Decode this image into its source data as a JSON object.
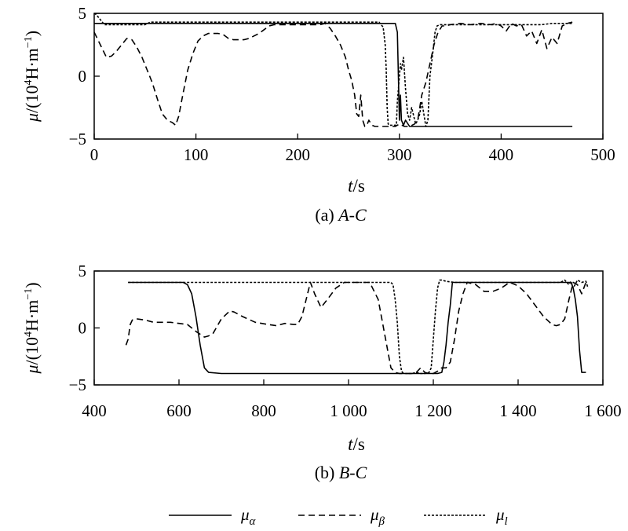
{
  "chart_data": [
    {
      "type": "line",
      "caption_label": "(a) ",
      "caption_italic": "A-C",
      "xlabel_italic": "t",
      "xlabel_rest": "/s",
      "ylabel_italic": "μ",
      "ylabel_rest_a": "/(10",
      "ylabel_sup": "4",
      "ylabel_rest_b": "H·m",
      "ylabel_sup2": "−1",
      "ylabel_rest_c": ")",
      "xlim": [
        0,
        500
      ],
      "ylim": [
        -5,
        5
      ],
      "xticks": [
        0,
        100,
        200,
        300,
        400,
        500
      ],
      "xtick_labels": [
        "0",
        "100",
        "200",
        "300",
        "400",
        "500"
      ],
      "yticks": [
        5,
        0,
        -5
      ],
      "ytick_labels": [
        "5",
        "0",
        "−5"
      ],
      "series": [
        {
          "key": "mu_alpha",
          "style": "solid",
          "x": [
            0,
            296,
            298,
            299,
            300,
            301,
            302,
            304,
            306,
            310,
            320,
            470
          ],
          "y": [
            4.2,
            4.2,
            3.5,
            0,
            -3.5,
            -1.5,
            -3.5,
            -3.9,
            -3.5,
            -4.0,
            -4.0,
            -4.0
          ]
        },
        {
          "key": "mu_beta",
          "style": "dashed",
          "x": [
            0,
            6,
            12,
            17,
            22,
            27,
            32,
            37,
            42,
            47,
            52,
            57,
            62,
            67,
            72,
            77,
            80,
            83,
            87,
            92,
            97,
            102,
            107,
            112,
            117,
            122,
            127,
            132,
            137,
            142,
            147,
            152,
            157,
            162,
            167,
            172,
            177,
            182,
            187,
            192,
            197,
            202,
            207,
            212,
            217,
            222,
            227,
            232,
            237,
            242,
            247,
            250,
            253,
            256,
            258,
            260,
            262,
            264,
            266,
            268,
            270,
            273,
            276,
            280,
            285,
            290,
            296,
            300,
            305,
            310,
            315,
            318,
            322,
            326,
            330,
            334,
            338,
            342,
            346,
            350,
            360,
            370,
            380,
            390,
            395,
            400,
            405,
            410,
            415,
            420,
            425,
            430,
            435,
            440,
            445,
            450,
            455,
            460,
            465,
            470
          ],
          "y": [
            3.5,
            2.5,
            1.5,
            1.6,
            2.0,
            2.5,
            3.0,
            2.9,
            2.3,
            1.5,
            0.5,
            -0.5,
            -1.8,
            -3.0,
            -3.5,
            -3.7,
            -3.9,
            -3.2,
            -1.5,
            0.5,
            1.8,
            2.8,
            3.2,
            3.4,
            3.4,
            3.4,
            3.3,
            3.0,
            2.9,
            2.9,
            2.9,
            3.0,
            3.2,
            3.4,
            3.7,
            4.0,
            4.1,
            4.1,
            4.1,
            4.1,
            4.1,
            4.1,
            4.1,
            4.1,
            4.1,
            4.1,
            4.2,
            3.8,
            3.2,
            2.5,
            1.5,
            0.5,
            -0.3,
            -1.5,
            -3.0,
            -3.2,
            -1.5,
            -3.5,
            -4.0,
            -3.9,
            -3.5,
            -3.9,
            -4.0,
            -4.0,
            -4.0,
            -4.0,
            -4.0,
            -3.8,
            -4.0,
            -4.0,
            -3.8,
            -3.5,
            -1.5,
            -0.5,
            1.0,
            2.5,
            3.5,
            4.0,
            4.0,
            4.1,
            4.2,
            4.1,
            4.2,
            4.1,
            4.2,
            4.0,
            3.6,
            4.2,
            4.0,
            4.1,
            3.2,
            3.6,
            2.6,
            3.7,
            2.2,
            3.1,
            2.6,
            4.0,
            4.2,
            4.3
          ]
        },
        {
          "key": "mu_l",
          "style": "dotted",
          "x": [
            0,
            2,
            5,
            10,
            20,
            50,
            55,
            280,
            284,
            286,
            287,
            288,
            289,
            290,
            291,
            292,
            293,
            294,
            295,
            296,
            297,
            298,
            300,
            301,
            302,
            304,
            306,
            308,
            310,
            312,
            316,
            318,
            320,
            322,
            324,
            326,
            328,
            330,
            333,
            335,
            337,
            340,
            345,
            350,
            360,
            400,
            420,
            440,
            450,
            460,
            470
          ],
          "y": [
            5.0,
            4.9,
            4.6,
            4.1,
            4.1,
            4.1,
            4.3,
            4.3,
            3.9,
            2.5,
            0.5,
            -2.5,
            -3.8,
            -3.9,
            -3.9,
            -3.9,
            -3.9,
            -3.9,
            -3.9,
            -3.9,
            -3.9,
            -2.0,
            0.0,
            1.0,
            0.5,
            1.5,
            -1.0,
            -3.0,
            -3.5,
            -2.5,
            -3.8,
            -3.5,
            -3.0,
            -2.0,
            -3.0,
            -4.0,
            -3.5,
            0.0,
            2.0,
            3.5,
            4.0,
            4.1,
            4.1,
            4.1,
            4.1,
            4.1,
            4.1,
            4.1,
            4.2,
            4.2,
            4.2
          ]
        }
      ]
    },
    {
      "type": "line",
      "caption_label": "(b) ",
      "caption_italic": "B-C",
      "xlabel_italic": "t",
      "xlabel_rest": "/s",
      "ylabel_italic": "μ",
      "ylabel_rest_a": "/(10",
      "ylabel_sup": "4",
      "ylabel_rest_b": "H·m",
      "ylabel_sup2": "−1",
      "ylabel_rest_c": ")",
      "xlim": [
        400,
        1600
      ],
      "ylim": [
        -5,
        5
      ],
      "xticks": [
        400,
        600,
        800,
        1000,
        1200,
        1400,
        1600
      ],
      "xtick_labels": [
        "400",
        "600",
        "800",
        "1 000",
        "1 200",
        "1 400",
        "1 600"
      ],
      "yticks": [
        5,
        0,
        -5
      ],
      "ytick_labels": [
        "5",
        "0",
        "−5"
      ],
      "series": [
        {
          "key": "mu_alpha",
          "style": "solid",
          "x": [
            480,
            610,
            620,
            630,
            640,
            650,
            660,
            670,
            700,
            1210,
            1220,
            1225,
            1230,
            1235,
            1240,
            1245,
            1250,
            1520,
            1525,
            1530,
            1535,
            1540,
            1545,
            1550,
            1560
          ],
          "y": [
            4.0,
            4.0,
            3.8,
            3.0,
            1.0,
            -1.5,
            -3.5,
            -3.9,
            -4.0,
            -4.0,
            -3.9,
            -3.0,
            -1.5,
            0.5,
            2.0,
            4.0,
            4.0,
            4.0,
            4.0,
            3.5,
            2.5,
            1.0,
            -2.0,
            -3.9,
            -3.9
          ]
        },
        {
          "key": "mu_beta",
          "style": "dashed",
          "x": [
            475,
            480,
            485,
            490,
            500,
            520,
            540,
            560,
            580,
            600,
            620,
            640,
            660,
            670,
            680,
            700,
            720,
            730,
            750,
            780,
            810,
            830,
            850,
            870,
            880,
            890,
            900,
            910,
            920,
            935,
            950,
            970,
            990,
            1010,
            1030,
            1050,
            1070,
            1080,
            1090,
            1100,
            1110,
            1120,
            1130,
            1140,
            1150,
            1160,
            1170,
            1180,
            1190,
            1200,
            1210,
            1220,
            1230,
            1240,
            1250,
            1260,
            1270,
            1280,
            1300,
            1320,
            1340,
            1360,
            1380,
            1400,
            1420,
            1440,
            1460,
            1480,
            1490,
            1500,
            1510,
            1520,
            1530,
            1540,
            1550,
            1560,
            1565
          ],
          "y": [
            -1.5,
            -1.0,
            0.3,
            0.7,
            0.8,
            0.7,
            0.5,
            0.5,
            0.5,
            0.4,
            0.3,
            -0.3,
            -0.8,
            -0.7,
            -0.5,
            0.8,
            1.5,
            1.4,
            1.0,
            0.5,
            0.3,
            0.2,
            0.4,
            0.3,
            0.3,
            1.0,
            2.5,
            4.0,
            3.0,
            1.8,
            2.5,
            3.5,
            4.0,
            4.0,
            4.0,
            4.0,
            2.5,
            0.5,
            -1.5,
            -3.5,
            -3.9,
            -4.0,
            -4.0,
            -4.0,
            -4.0,
            -3.9,
            -3.5,
            -3.9,
            -4.0,
            -4.0,
            -3.8,
            -3.5,
            -3.5,
            -3.0,
            -1.0,
            1.5,
            3.0,
            4.0,
            3.8,
            3.2,
            3.2,
            3.5,
            4.0,
            3.7,
            3.0,
            2.0,
            1.0,
            0.3,
            0.2,
            0.3,
            0.8,
            2.5,
            4.0,
            3.8,
            3.0,
            4.0,
            3.8
          ]
        },
        {
          "key": "mu_l",
          "style": "dotted",
          "x": [
            480,
            700,
            1000,
            1100,
            1105,
            1110,
            1115,
            1120,
            1125,
            1130,
            1140,
            1150,
            1160,
            1170,
            1180,
            1190,
            1195,
            1200,
            1205,
            1210,
            1215,
            1220,
            1230,
            1250,
            1300,
            1400,
            1500,
            1510,
            1520,
            1525,
            1530,
            1540,
            1550,
            1560,
            1565
          ],
          "y": [
            4.0,
            4.0,
            4.0,
            4.0,
            3.8,
            2.5,
            0.5,
            -2.5,
            -3.8,
            -4.0,
            -4.0,
            -4.0,
            -3.9,
            -4.0,
            -4.0,
            -3.9,
            -3.5,
            -1.0,
            1.5,
            3.5,
            4.2,
            4.2,
            4.1,
            4.0,
            4.0,
            4.0,
            4.0,
            4.2,
            3.8,
            4.1,
            3.5,
            4.2,
            4.0,
            4.1,
            3.5
          ]
        }
      ]
    }
  ],
  "legend": [
    {
      "key": "mu_alpha",
      "style": "solid",
      "symbol": "μ",
      "sub": "α"
    },
    {
      "key": "mu_beta",
      "style": "dashed",
      "symbol": "μ",
      "sub": "β"
    },
    {
      "key": "mu_l",
      "style": "dotted",
      "symbol": "μ",
      "sub": "l"
    }
  ],
  "colors": {
    "line": "#000000",
    "background": "#ffffff"
  }
}
